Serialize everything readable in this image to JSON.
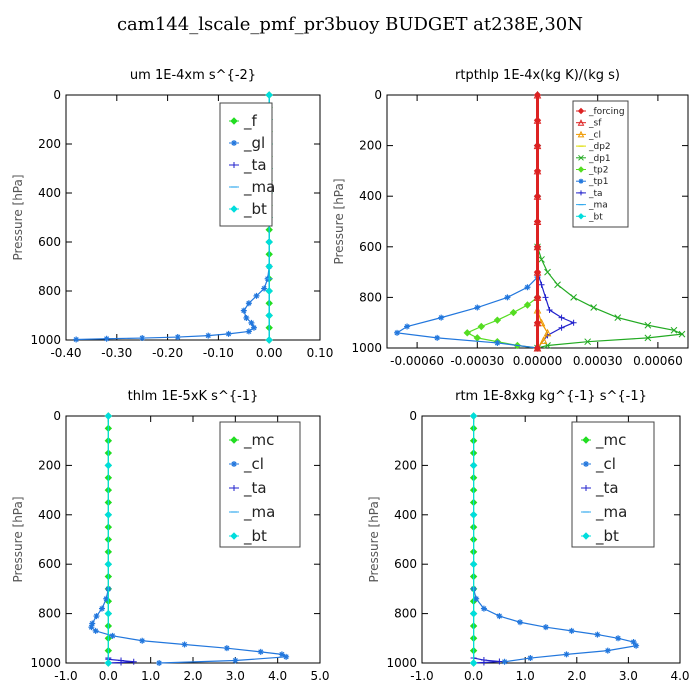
{
  "title": "cam144_lscale_pmf_pr3buoy  BUDGET at238E,30N",
  "chart_data": [
    {
      "type": "line",
      "title": "um  1E-4xm s^{-2}",
      "ylabel": "Pressure [hPa]",
      "xlim": [
        -0.4,
        0.1
      ],
      "ylim": [
        1000,
        0
      ],
      "xticks": [
        "-0.40",
        "-0.30",
        "-0.20",
        "-0.10",
        "0.00",
        "0.10"
      ],
      "xtick_values": [
        -0.4,
        -0.3,
        -0.2,
        -0.1,
        0.0,
        0.1
      ],
      "yticks": [
        "0",
        "200",
        "400",
        "600",
        "800",
        "1000"
      ],
      "ytick_values": [
        0,
        200,
        400,
        600,
        800,
        1000
      ],
      "legend_position": "top-right",
      "legend": [
        {
          "name": "_f",
          "color": "#22dd22",
          "marker": "diamond"
        },
        {
          "name": "_gl",
          "color": "#2277dd",
          "marker": "star"
        },
        {
          "name": "_ta",
          "color": "#2222cc",
          "marker": "plus"
        },
        {
          "name": "_ma",
          "color": "#33aaee",
          "marker": "dash"
        },
        {
          "name": "_bt",
          "color": "#00dddd",
          "marker": "diamond"
        }
      ],
      "series": [
        {
          "name": "_f",
          "color": "#22dd22",
          "marker": "diamond",
          "x": [
            0,
            0,
            0,
            0,
            0,
            0,
            0,
            0,
            0,
            0,
            0,
            0,
            0,
            0,
            0,
            0,
            0,
            0,
            0,
            0,
            0
          ],
          "y": [
            0,
            50,
            100,
            150,
            200,
            250,
            300,
            350,
            400,
            450,
            500,
            550,
            600,
            650,
            700,
            750,
            800,
            850,
            900,
            950,
            1000
          ]
        },
        {
          "name": "_gl",
          "color": "#2277dd",
          "marker": "star",
          "x": [
            0,
            -0.003,
            -0.01,
            -0.025,
            -0.04,
            -0.05,
            -0.045,
            -0.035,
            -0.03,
            -0.04,
            -0.08,
            -0.12,
            -0.18,
            -0.25,
            -0.32,
            -0.38
          ],
          "y": [
            700,
            750,
            790,
            820,
            850,
            880,
            910,
            930,
            950,
            965,
            975,
            982,
            988,
            992,
            995,
            998
          ]
        },
        {
          "name": "_ta",
          "color": "#2222cc",
          "marker": "plus",
          "x": [
            0,
            0,
            0,
            0,
            0
          ],
          "y": [
            0,
            250,
            500,
            750,
            1000
          ]
        },
        {
          "name": "_ma",
          "color": "#33aaee",
          "marker": "dash",
          "x": [
            0,
            0,
            0,
            0,
            0
          ],
          "y": [
            0,
            250,
            500,
            750,
            1000
          ]
        },
        {
          "name": "_bt",
          "color": "#00dddd",
          "marker": "diamond",
          "x": [
            0,
            0,
            0,
            0,
            0,
            0,
            0,
            0,
            0,
            0,
            0
          ],
          "y": [
            0,
            100,
            200,
            300,
            400,
            500,
            600,
            700,
            800,
            900,
            1000
          ]
        }
      ]
    },
    {
      "type": "line",
      "title": "rtpthlp  1E-4x(kg K)/(kg s)",
      "ylabel": "Pressure [hPa]",
      "xlim": [
        -0.00075,
        0.00075
      ],
      "ylim": [
        1000,
        0
      ],
      "xticks": [
        "-0.00060",
        "-0.00030",
        "0.00000",
        "0.00030",
        "0.00060"
      ],
      "xtick_values": [
        -0.0006,
        -0.0003,
        0.0,
        0.0003,
        0.0006
      ],
      "yticks": [
        "0",
        "200",
        "400",
        "600",
        "800",
        "1000"
      ],
      "ytick_values": [
        0,
        200,
        400,
        600,
        800,
        1000
      ],
      "legend_position": "top-right",
      "legend": [
        {
          "name": "_forcing",
          "color": "#dd2222",
          "marker": "diamond"
        },
        {
          "name": "_sf",
          "color": "#dd2222",
          "marker": "triangle"
        },
        {
          "name": "_cl",
          "color": "#ee9900",
          "marker": "triangle"
        },
        {
          "name": "_dp2",
          "color": "#dddd00",
          "marker": "dash"
        },
        {
          "name": "_dp1",
          "color": "#22aa22",
          "marker": "cross"
        },
        {
          "name": "_tp2",
          "color": "#55dd22",
          "marker": "diamond"
        },
        {
          "name": "_tp1",
          "color": "#2277dd",
          "marker": "star"
        },
        {
          "name": "_ta",
          "color": "#2222cc",
          "marker": "plus"
        },
        {
          "name": "_ma",
          "color": "#33aaee",
          "marker": "dash"
        },
        {
          "name": "_bt",
          "color": "#00dddd",
          "marker": "diamond"
        }
      ],
      "series": [
        {
          "name": "_dp1",
          "color": "#22aa22",
          "marker": "cross",
          "x": [
            0,
            2e-05,
            5e-05,
            0.0001,
            0.00018,
            0.00028,
            0.0004,
            0.00055,
            0.00068,
            0.00072,
            0.00055,
            0.00025,
            5e-05,
            0
          ],
          "y": [
            600,
            650,
            700,
            750,
            800,
            840,
            880,
            910,
            930,
            945,
            960,
            975,
            990,
            1000
          ]
        },
        {
          "name": "_tp2",
          "color": "#55dd22",
          "marker": "diamond",
          "x": [
            0,
            -5e-05,
            -0.00012,
            -0.0002,
            -0.00028,
            -0.00035,
            -0.0003,
            -0.0002,
            -0.0001,
            0
          ],
          "y": [
            800,
            830,
            860,
            890,
            915,
            940,
            960,
            975,
            990,
            1000
          ]
        },
        {
          "name": "_tp1",
          "color": "#2277dd",
          "marker": "star",
          "x": [
            0,
            -5e-05,
            -0.00015,
            -0.0003,
            -0.00048,
            -0.00065,
            -0.0007,
            -0.0005,
            -0.0002,
            0
          ],
          "y": [
            720,
            760,
            800,
            840,
            880,
            915,
            940,
            960,
            980,
            1000
          ]
        },
        {
          "name": "_ta",
          "color": "#2222cc",
          "marker": "plus",
          "x": [
            0,
            2e-05,
            4e-05,
            6e-05,
            0.00012,
            0.00018,
            0.00012,
            5e-05,
            0
          ],
          "y": [
            700,
            750,
            800,
            850,
            880,
            900,
            920,
            950,
            1000
          ]
        },
        {
          "name": "_cl",
          "color": "#ee9900",
          "marker": "triangle",
          "x": [
            0,
            2e-05,
            5e-05,
            3e-05,
            0
          ],
          "y": [
            850,
            900,
            940,
            970,
            1000
          ]
        },
        {
          "name": "_bt",
          "color": "#00dddd",
          "marker": "diamond",
          "x": [
            0,
            0,
            0,
            0,
            0,
            0
          ],
          "y": [
            0,
            200,
            400,
            600,
            800,
            1000
          ]
        },
        {
          "name": "_forcing",
          "color": "#dd2222",
          "marker": "diamond",
          "x": [
            0,
            0,
            0,
            0,
            0,
            0,
            0,
            0,
            0,
            0,
            0
          ],
          "y": [
            0,
            100,
            200,
            300,
            400,
            500,
            600,
            700,
            800,
            900,
            1000
          ]
        },
        {
          "name": "_sf",
          "color": "#dd2222",
          "marker": "triangle",
          "x": [
            0,
            0,
            0,
            0,
            0,
            0,
            0,
            0,
            0,
            0,
            0
          ],
          "y": [
            0,
            100,
            200,
            300,
            400,
            500,
            600,
            700,
            800,
            900,
            1000
          ]
        }
      ]
    },
    {
      "type": "line",
      "title": "thlm  1E-5xK s^{-1}",
      "ylabel": "Pressure [hPa]",
      "xlim": [
        -1.0,
        5.0
      ],
      "ylim": [
        1000,
        0
      ],
      "xticks": [
        "-1.0",
        "0.0",
        "1.0",
        "2.0",
        "3.0",
        "4.0",
        "5.0"
      ],
      "xtick_values": [
        -1,
        0,
        1,
        2,
        3,
        4,
        5
      ],
      "yticks": [
        "0",
        "200",
        "400",
        "600",
        "800",
        "1000"
      ],
      "ytick_values": [
        0,
        200,
        400,
        600,
        800,
        1000
      ],
      "legend_position": "top-right",
      "legend": [
        {
          "name": "_mc",
          "color": "#22dd22",
          "marker": "diamond"
        },
        {
          "name": "_cl",
          "color": "#2277dd",
          "marker": "star"
        },
        {
          "name": "_ta",
          "color": "#2222cc",
          "marker": "plus"
        },
        {
          "name": "_ma",
          "color": "#33aaee",
          "marker": "dash"
        },
        {
          "name": "_bt",
          "color": "#00dddd",
          "marker": "diamond"
        }
      ],
      "series": [
        {
          "name": "_mc",
          "color": "#22dd22",
          "marker": "diamond",
          "x": [
            0,
            0,
            0,
            0,
            0,
            0,
            0,
            0,
            0,
            0,
            0,
            0,
            0,
            0,
            0,
            0,
            0,
            0,
            0,
            0,
            0
          ],
          "y": [
            0,
            50,
            100,
            150,
            200,
            250,
            300,
            350,
            400,
            450,
            500,
            550,
            600,
            650,
            700,
            750,
            800,
            850,
            900,
            950,
            1000
          ]
        },
        {
          "name": "_cl",
          "color": "#2277dd",
          "marker": "star",
          "x": [
            0,
            -0.05,
            -0.15,
            -0.28,
            -0.38,
            -0.4,
            -0.3,
            0.1,
            0.8,
            1.8,
            2.8,
            3.6,
            4.1,
            4.2,
            3.0,
            1.2
          ],
          "y": [
            700,
            740,
            780,
            810,
            840,
            855,
            870,
            890,
            910,
            925,
            940,
            955,
            965,
            975,
            990,
            1000
          ]
        },
        {
          "name": "_ta",
          "color": "#2222cc",
          "marker": "plus",
          "x": [
            0,
            0,
            0.3,
            0.6,
            0.3,
            0
          ],
          "y": [
            980,
            985,
            990,
            995,
            998,
            1000
          ]
        },
        {
          "name": "_bt",
          "color": "#00dddd",
          "marker": "diamond",
          "x": [
            0,
            0,
            0,
            0,
            0,
            0
          ],
          "y": [
            0,
            200,
            400,
            600,
            800,
            1000
          ]
        }
      ]
    },
    {
      "type": "line",
      "title": "rtm  1E-8xkg kg^{-1} s^{-1}",
      "ylabel": "Pressure [hPa]",
      "xlim": [
        -1.0,
        4.0
      ],
      "ylim": [
        1000,
        0
      ],
      "xticks": [
        "-1.0",
        "0.0",
        "1.0",
        "2.0",
        "3.0",
        "4.0"
      ],
      "xtick_values": [
        -1,
        0,
        1,
        2,
        3,
        4
      ],
      "yticks": [
        "0",
        "200",
        "400",
        "600",
        "800",
        "1000"
      ],
      "ytick_values": [
        0,
        200,
        400,
        600,
        800,
        1000
      ],
      "legend_position": "top-right",
      "legend": [
        {
          "name": "_mc",
          "color": "#22dd22",
          "marker": "diamond"
        },
        {
          "name": "_cl",
          "color": "#2277dd",
          "marker": "star"
        },
        {
          "name": "_ta",
          "color": "#2222cc",
          "marker": "plus"
        },
        {
          "name": "_ma",
          "color": "#33aaee",
          "marker": "dash"
        },
        {
          "name": "_bt",
          "color": "#00dddd",
          "marker": "diamond"
        }
      ],
      "series": [
        {
          "name": "_mc",
          "color": "#22dd22",
          "marker": "diamond",
          "x": [
            0,
            0,
            0,
            0,
            0,
            0,
            0,
            0,
            0,
            0,
            0,
            0,
            0,
            0,
            0,
            0,
            0,
            0,
            0,
            0,
            0
          ],
          "y": [
            0,
            50,
            100,
            150,
            200,
            250,
            300,
            350,
            400,
            450,
            500,
            550,
            600,
            650,
            700,
            750,
            800,
            850,
            900,
            950,
            1000
          ]
        },
        {
          "name": "_cl",
          "color": "#2277dd",
          "marker": "star",
          "x": [
            0,
            0.05,
            0.2,
            0.5,
            0.9,
            1.4,
            1.9,
            2.4,
            2.8,
            3.1,
            3.15,
            2.6,
            1.8,
            1.1,
            0.6
          ],
          "y": [
            700,
            740,
            780,
            810,
            835,
            855,
            870,
            885,
            900,
            915,
            930,
            950,
            965,
            980,
            995
          ]
        },
        {
          "name": "_ta",
          "color": "#2222cc",
          "marker": "plus",
          "x": [
            0,
            0.2,
            0.5,
            0.2,
            0
          ],
          "y": [
            980,
            988,
            994,
            998,
            1000
          ]
        },
        {
          "name": "_bt",
          "color": "#00dddd",
          "marker": "diamond",
          "x": [
            0,
            0,
            0,
            0,
            0,
            0
          ],
          "y": [
            0,
            200,
            400,
            600,
            800,
            1000
          ]
        }
      ]
    }
  ]
}
